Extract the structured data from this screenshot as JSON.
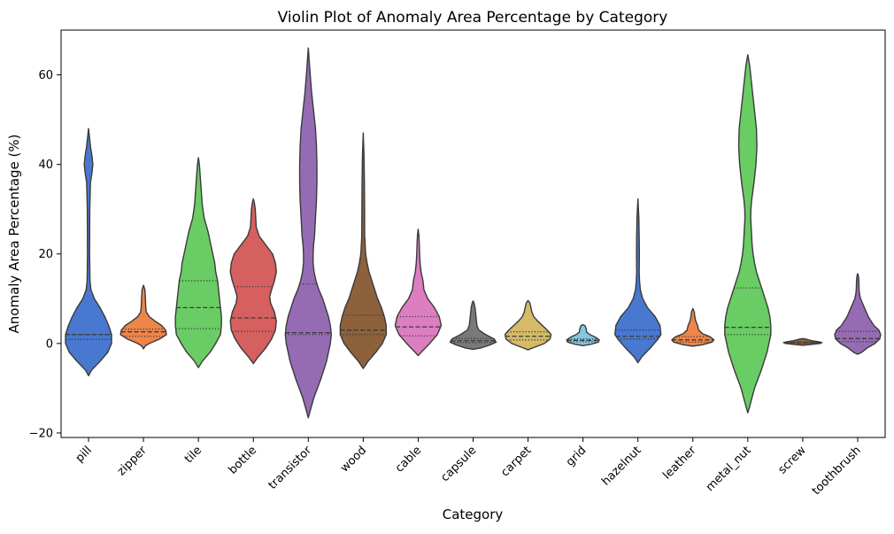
{
  "chart_data": {
    "type": "violin",
    "title": "Violin Plot of Anomaly Area Percentage by Category",
    "xlabel": "Category",
    "ylabel": "Anomaly Area Percentage (%)",
    "ylim": [
      -21,
      70
    ],
    "yticks": [
      -20,
      0,
      20,
      40,
      60
    ],
    "grid": false,
    "categories": [
      "pill",
      "zipper",
      "tile",
      "bottle",
      "transistor",
      "wood",
      "cable",
      "capsule",
      "carpet",
      "grid",
      "hazelnut",
      "leather",
      "metal_nut",
      "screw",
      "toothbrush"
    ],
    "series": [
      {
        "category": "pill",
        "color": "#4878d0",
        "min": -7.2,
        "max": 48.0,
        "q1": 0.9,
        "median": 2.0,
        "q3": 2.0,
        "profile": [
          [
            -7.2,
            0
          ],
          [
            -6,
            3
          ],
          [
            -4,
            12
          ],
          [
            -2,
            20
          ],
          [
            0,
            24
          ],
          [
            2,
            24
          ],
          [
            4,
            21
          ],
          [
            6,
            17
          ],
          [
            8,
            12
          ],
          [
            10,
            6
          ],
          [
            12,
            2.5
          ],
          [
            14,
            1.5
          ],
          [
            20,
            1.1
          ],
          [
            30,
            1.3
          ],
          [
            36,
            2
          ],
          [
            38,
            3.5
          ],
          [
            40,
            4.5
          ],
          [
            42,
            3.5
          ],
          [
            44,
            2
          ],
          [
            46,
            1
          ],
          [
            48,
            0
          ]
        ]
      },
      {
        "category": "zipper",
        "color": "#ee854a",
        "min": -1.2,
        "max": 13.0,
        "q1": 1.6,
        "median": 2.6,
        "q3": 3.2,
        "profile": [
          [
            -1.2,
            0
          ],
          [
            -0.5,
            2
          ],
          [
            0,
            6
          ],
          [
            1,
            17
          ],
          [
            2,
            24
          ],
          [
            3,
            23
          ],
          [
            4,
            19
          ],
          [
            5,
            12
          ],
          [
            6,
            6
          ],
          [
            7,
            3
          ],
          [
            8,
            2.4
          ],
          [
            10,
            2
          ],
          [
            12,
            1.5
          ],
          [
            13,
            0
          ]
        ]
      },
      {
        "category": "tile",
        "color": "#6acc64",
        "min": -5.4,
        "max": 41.5,
        "q1": 3.3,
        "median": 8.0,
        "q3": 14.0,
        "profile": [
          [
            -5.4,
            0
          ],
          [
            -4,
            4
          ],
          [
            -2,
            12
          ],
          [
            0,
            18
          ],
          [
            2,
            23
          ],
          [
            4,
            24
          ],
          [
            6,
            24
          ],
          [
            8,
            23
          ],
          [
            10,
            22
          ],
          [
            12,
            21
          ],
          [
            14,
            20
          ],
          [
            16,
            18
          ],
          [
            18,
            17
          ],
          [
            20,
            15
          ],
          [
            22,
            13
          ],
          [
            25,
            10
          ],
          [
            28,
            6
          ],
          [
            31,
            4
          ],
          [
            34,
            3
          ],
          [
            37,
            2
          ],
          [
            40,
            1
          ],
          [
            41.5,
            0
          ]
        ]
      },
      {
        "category": "bottle",
        "color": "#d65f5f",
        "min": -4.5,
        "max": 32.3,
        "q1": 2.7,
        "median": 5.7,
        "q3": 12.7,
        "profile": [
          [
            -4.5,
            0
          ],
          [
            -3,
            5
          ],
          [
            -1,
            13
          ],
          [
            1,
            19
          ],
          [
            3,
            23
          ],
          [
            5,
            24
          ],
          [
            7,
            22
          ],
          [
            9,
            18
          ],
          [
            10.5,
            17
          ],
          [
            12,
            19
          ],
          [
            14,
            22
          ],
          [
            16,
            24
          ],
          [
            18,
            23
          ],
          [
            20,
            20
          ],
          [
            22,
            13
          ],
          [
            24,
            6
          ],
          [
            26,
            3
          ],
          [
            28,
            2.5
          ],
          [
            30,
            2
          ],
          [
            31.5,
            1
          ],
          [
            32.3,
            0
          ]
        ]
      },
      {
        "category": "transistor",
        "color": "#956cb4",
        "min": -16.6,
        "max": 66.0,
        "q1": 2.0,
        "median": 2.4,
        "q3": 13.3,
        "profile": [
          [
            -16.6,
            0
          ],
          [
            -15,
            2
          ],
          [
            -12,
            6
          ],
          [
            -8,
            13
          ],
          [
            -4,
            19
          ],
          [
            0,
            23
          ],
          [
            2,
            24
          ],
          [
            4,
            23
          ],
          [
            6,
            21
          ],
          [
            8,
            18
          ],
          [
            10,
            15
          ],
          [
            12,
            11
          ],
          [
            14,
            8
          ],
          [
            16,
            6
          ],
          [
            18,
            5
          ],
          [
            20,
            5
          ],
          [
            22,
            5.5
          ],
          [
            24,
            6.5
          ],
          [
            28,
            7.5
          ],
          [
            32,
            8.5
          ],
          [
            36,
            9
          ],
          [
            40,
            9
          ],
          [
            44,
            8.5
          ],
          [
            48,
            7.5
          ],
          [
            52,
            5.5
          ],
          [
            56,
            3.5
          ],
          [
            60,
            2
          ],
          [
            63,
            1
          ],
          [
            66,
            0
          ]
        ]
      },
      {
        "category": "wood",
        "color": "#8c613c",
        "min": -5.6,
        "max": 47.0,
        "q1": 2.0,
        "median": 3.0,
        "q3": 6.3,
        "profile": [
          [
            -5.6,
            0
          ],
          [
            -4,
            5
          ],
          [
            -2,
            13
          ],
          [
            0,
            20
          ],
          [
            2,
            24
          ],
          [
            4,
            24
          ],
          [
            6,
            22
          ],
          [
            8,
            19
          ],
          [
            10,
            15
          ],
          [
            12,
            12
          ],
          [
            14,
            9
          ],
          [
            16,
            6
          ],
          [
            18,
            4
          ],
          [
            20,
            2.5
          ],
          [
            22,
            2
          ],
          [
            24,
            1.5
          ],
          [
            30,
            1.4
          ],
          [
            36,
            1.2
          ],
          [
            42,
            0.8
          ],
          [
            47,
            0
          ]
        ]
      },
      {
        "category": "cable",
        "color": "#dc7ec0",
        "min": -2.7,
        "max": 25.5,
        "q1": 1.7,
        "median": 3.7,
        "q3": 6.0,
        "profile": [
          [
            -2.7,
            0
          ],
          [
            -2,
            3
          ],
          [
            0,
            12
          ],
          [
            2,
            20
          ],
          [
            4,
            24
          ],
          [
            6,
            22
          ],
          [
            8,
            17
          ],
          [
            10,
            10
          ],
          [
            12,
            6
          ],
          [
            14,
            5
          ],
          [
            16,
            3
          ],
          [
            18,
            2
          ],
          [
            20,
            1.5
          ],
          [
            22,
            1.2
          ],
          [
            24,
            0.8
          ],
          [
            25.5,
            0
          ]
        ]
      },
      {
        "category": "capsule",
        "color": "#797979",
        "min": -1.3,
        "max": 9.5,
        "q1": 0.2,
        "median": 0.6,
        "q3": 1.1,
        "profile": [
          [
            -1.3,
            0
          ],
          [
            -1,
            8
          ],
          [
            -0.3,
            18
          ],
          [
            0.3,
            24
          ],
          [
            1,
            22
          ],
          [
            2,
            13
          ],
          [
            3,
            6
          ],
          [
            4,
            4
          ],
          [
            5,
            3.5
          ],
          [
            6,
            3
          ],
          [
            7,
            2.5
          ],
          [
            8,
            2
          ],
          [
            9,
            1
          ],
          [
            9.5,
            0
          ]
        ]
      },
      {
        "category": "carpet",
        "color": "#d5bb67",
        "min": -1.4,
        "max": 9.6,
        "q1": 0.8,
        "median": 1.6,
        "q3": 2.6,
        "profile": [
          [
            -1.4,
            0
          ],
          [
            -1,
            5
          ],
          [
            0,
            17
          ],
          [
            1,
            23
          ],
          [
            2,
            24
          ],
          [
            3,
            20
          ],
          [
            4,
            15
          ],
          [
            5,
            10
          ],
          [
            6,
            6
          ],
          [
            7,
            4
          ],
          [
            8,
            3
          ],
          [
            9,
            2
          ],
          [
            9.6,
            0
          ]
        ]
      },
      {
        "category": "grid",
        "color": "#82c6e2",
        "min": -0.5,
        "max": 4.2,
        "q1": 0.4,
        "median": 0.7,
        "q3": 1.0,
        "profile": [
          [
            -0.5,
            0
          ],
          [
            -0.2,
            8
          ],
          [
            0.3,
            16
          ],
          [
            0.8,
            17
          ],
          [
            1.4,
            13
          ],
          [
            2,
            7
          ],
          [
            2.5,
            4
          ],
          [
            3,
            3.5
          ],
          [
            3.5,
            3
          ],
          [
            4,
            2
          ],
          [
            4.2,
            0
          ]
        ]
      },
      {
        "category": "hazelnut",
        "color": "#4878d0",
        "min": -4.3,
        "max": 32.3,
        "q1": 1.0,
        "median": 1.6,
        "q3": 3.0,
        "profile": [
          [
            -4.3,
            0
          ],
          [
            -3,
            4
          ],
          [
            -1,
            13
          ],
          [
            1,
            21
          ],
          [
            2,
            24
          ],
          [
            4,
            23
          ],
          [
            6,
            18
          ],
          [
            8,
            10
          ],
          [
            10,
            5
          ],
          [
            12,
            2.5
          ],
          [
            14,
            1.7
          ],
          [
            16,
            1.3
          ],
          [
            20,
            1.5
          ],
          [
            24,
            1.3
          ],
          [
            28,
            1
          ],
          [
            32.3,
            0
          ]
        ]
      },
      {
        "category": "leather",
        "color": "#ee854a",
        "min": -0.6,
        "max": 7.8,
        "q1": 0.3,
        "median": 0.8,
        "q3": 1.5,
        "profile": [
          [
            -0.6,
            0
          ],
          [
            -0.3,
            10
          ],
          [
            0.3,
            20
          ],
          [
            0.8,
            22
          ],
          [
            1.5,
            18
          ],
          [
            2.2,
            10
          ],
          [
            3,
            6
          ],
          [
            4,
            5
          ],
          [
            5,
            3
          ],
          [
            6,
            2
          ],
          [
            7,
            1.5
          ],
          [
            7.8,
            0
          ]
        ]
      },
      {
        "category": "metal_nut",
        "color": "#6acc64",
        "min": -15.5,
        "max": 64.5,
        "q1": 2.0,
        "median": 3.6,
        "q3": 12.4,
        "profile": [
          [
            -15.5,
            0
          ],
          [
            -14,
            2
          ],
          [
            -10,
            7
          ],
          [
            -6,
            14
          ],
          [
            -2,
            20
          ],
          [
            0,
            22
          ],
          [
            2,
            24
          ],
          [
            4,
            24
          ],
          [
            6,
            23
          ],
          [
            8,
            21
          ],
          [
            10,
            18
          ],
          [
            12,
            15
          ],
          [
            14,
            12
          ],
          [
            16,
            9
          ],
          [
            18,
            7
          ],
          [
            20,
            5.5
          ],
          [
            22,
            4.5
          ],
          [
            24,
            4
          ],
          [
            26,
            3.5
          ],
          [
            28,
            3
          ],
          [
            30,
            3.2
          ],
          [
            32,
            4
          ],
          [
            36,
            6.5
          ],
          [
            40,
            8.5
          ],
          [
            44,
            9.5
          ],
          [
            48,
            9
          ],
          [
            52,
            7
          ],
          [
            56,
            5
          ],
          [
            60,
            3
          ],
          [
            62,
            2
          ],
          [
            64.5,
            0
          ]
        ]
      },
      {
        "category": "screw",
        "color": "#8c613c",
        "min": -0.4,
        "max": 1.1,
        "q1": 0.1,
        "median": 0.2,
        "q3": 0.3,
        "profile": [
          [
            -0.4,
            0
          ],
          [
            -0.2,
            10
          ],
          [
            0,
            18
          ],
          [
            0.2,
            20
          ],
          [
            0.4,
            16
          ],
          [
            0.6,
            10
          ],
          [
            0.8,
            6
          ],
          [
            1,
            3
          ],
          [
            1.1,
            0
          ]
        ]
      },
      {
        "category": "toothbrush",
        "color": "#956cb4",
        "min": -2.4,
        "max": 15.6,
        "q1": 0.4,
        "median": 1.1,
        "q3": 2.7,
        "profile": [
          [
            -2.4,
            0
          ],
          [
            -2,
            4
          ],
          [
            -1,
            10
          ],
          [
            0,
            18
          ],
          [
            1,
            23
          ],
          [
            2,
            24
          ],
          [
            3,
            22
          ],
          [
            4,
            17
          ],
          [
            5,
            14
          ],
          [
            6,
            11
          ],
          [
            7,
            9
          ],
          [
            8,
            7
          ],
          [
            9,
            5
          ],
          [
            10,
            3
          ],
          [
            11,
            2
          ],
          [
            12,
            1.5
          ],
          [
            13,
            1.3
          ],
          [
            14,
            1.2
          ],
          [
            15,
            0.8
          ],
          [
            15.6,
            0
          ]
        ]
      }
    ]
  }
}
